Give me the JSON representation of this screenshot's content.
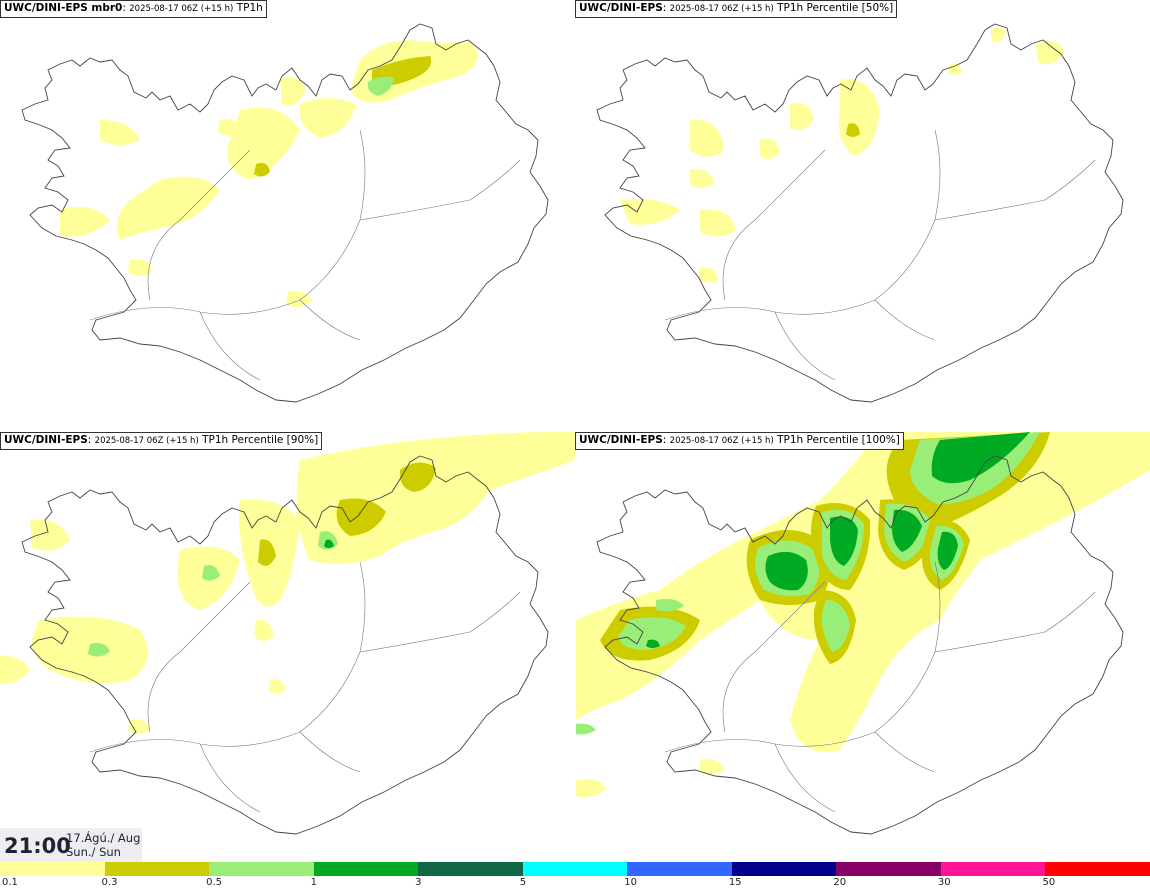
{
  "panels": [
    {
      "title_bold": "UWC/DINI-EPS mbr0",
      "title_run": "2025-08-17 06Z (+15 h)",
      "title_field": "TP1h"
    },
    {
      "title_bold": "UWC/DINI-EPS",
      "title_run": "2025-08-17 06Z (+15 h)",
      "title_field": "TP1h Percentile [50%]"
    },
    {
      "title_bold": "UWC/DINI-EPS",
      "title_run": "2025-08-17 06Z (+15 h)",
      "title_field": "TP1h Percentile [90%]"
    },
    {
      "title_bold": "UWC/DINI-EPS",
      "title_run": "2025-08-17 06Z (+15 h)",
      "title_field": "TP1h Percentile [100%]"
    }
  ],
  "valid_time": {
    "time": "21:00",
    "date_line1": "17.Ágú./ Aug",
    "date_line2": "Sun./ Sun"
  },
  "legend": {
    "colors": [
      "#ffff99",
      "#cccc00",
      "#99ee77",
      "#00aa22",
      "#116644",
      "#00ffff",
      "#3366ff",
      "#000088",
      "#880066",
      "#ff1493",
      "#ff0000"
    ],
    "ticks": [
      "0.1",
      "0.3",
      "0.5",
      "1",
      "3",
      "5",
      "10",
      "15",
      "20",
      "30",
      "50"
    ]
  }
}
